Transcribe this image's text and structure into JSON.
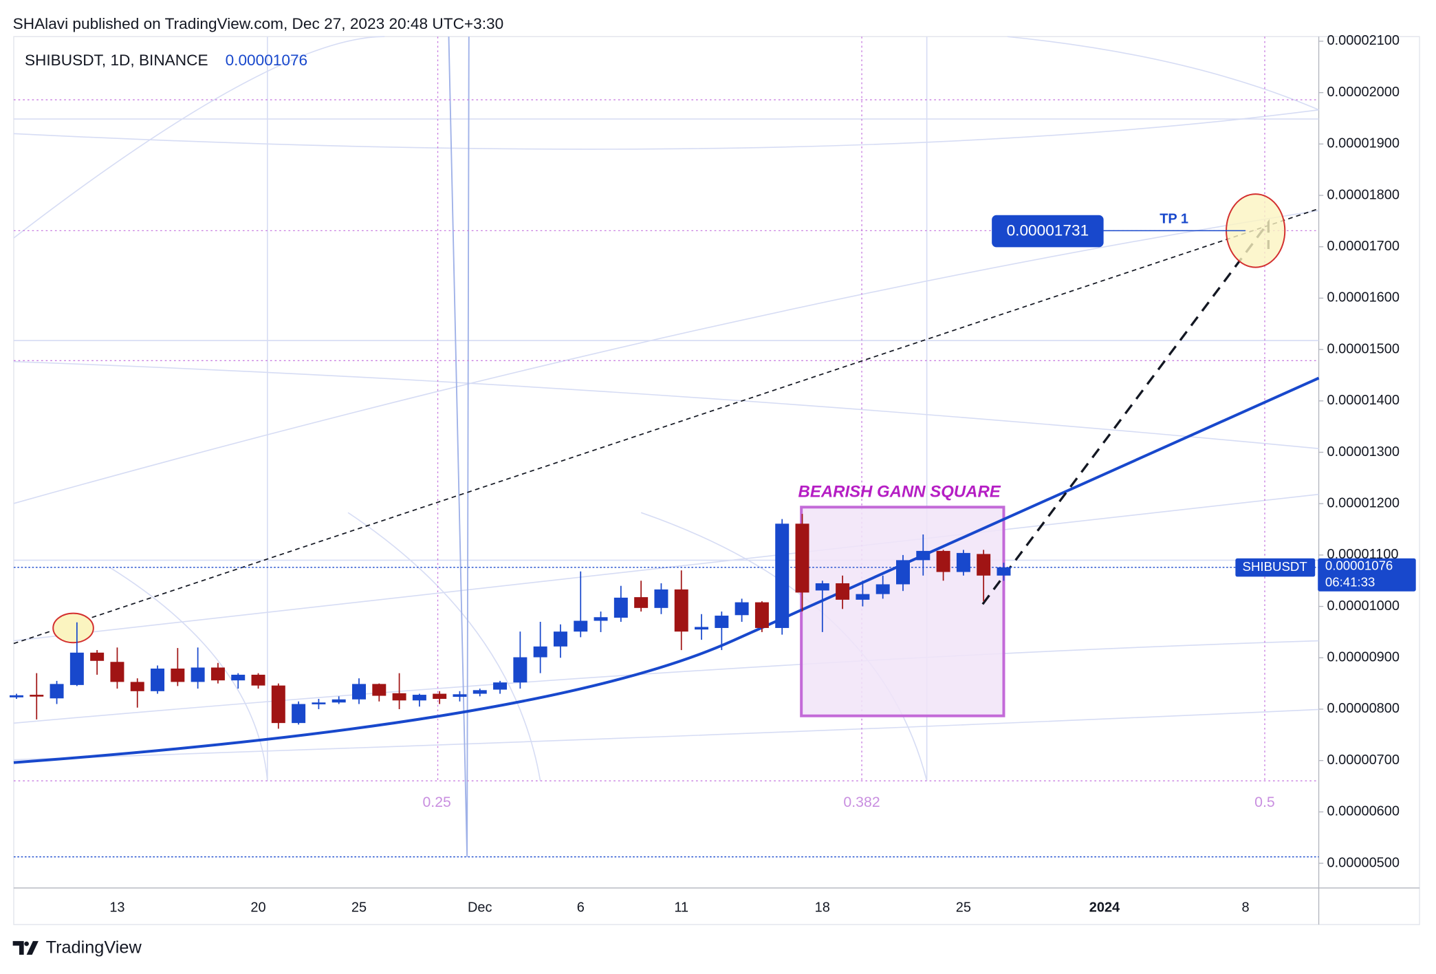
{
  "header": {
    "published": "SHAlavi published on TradingView.com, Dec 27, 2023 20:48 UTC+3:30",
    "symbol": "SHIBUSDT, 1D, BINANCE"
  },
  "footer": {
    "brand": "TradingView"
  },
  "chart_data": {
    "type": "candlestick",
    "categories": [
      null,
      null,
      null,
      null,
      null,
      "13",
      null,
      null,
      null,
      null,
      null,
      null,
      "20",
      null,
      null,
      null,
      null,
      "25",
      null,
      null,
      null,
      null,
      null,
      "Dec",
      null,
      null,
      null,
      null,
      "6",
      null,
      null,
      null,
      null,
      "11",
      null,
      null,
      null,
      null,
      null,
      null,
      "18",
      null,
      null,
      null,
      null,
      null,
      null,
      "25",
      null,
      null,
      null,
      null,
      null,
      null,
      "2024",
      null,
      null,
      null,
      null,
      null,
      null,
      "8",
      null,
      null,
      null
    ],
    "series": [
      {
        "name": "SHIBUSDT",
        "up_color": "#1848cc",
        "down_color": "#a01414",
        "open": [
          8.23e-06,
          8.28e-06,
          8.21e-06,
          8.47e-06,
          9.1e-06,
          8.92e-06,
          8.53e-06,
          8.35e-06,
          8.79e-06,
          8.53e-06,
          8.81e-06,
          8.56e-06,
          8.67e-06,
          8.46e-06,
          7.73e-06,
          8.1e-06,
          8.13e-06,
          8.19e-06,
          8.49e-06,
          8.31e-06,
          8.17e-06,
          8.3e-06,
          8.24e-06,
          8.3e-06,
          8.38e-06,
          8.52e-06,
          9.01e-06,
          9.22e-06,
          9.51e-06,
          9.72e-06,
          9.78e-06,
          1.018e-05,
          9.97e-06,
          1.033e-05,
          9.55e-06,
          9.58e-06,
          9.83e-06,
          1.008e-05,
          9.58e-06,
          1.161e-05,
          1.031e-05,
          1.045e-05,
          1.013e-05,
          1.024e-05,
          1.043e-05,
          1.09e-05,
          1.108e-05,
          1.067e-05,
          1.102e-05,
          1.06e-05,
          null,
          null,
          null,
          null,
          null,
          null,
          null,
          null,
          null,
          null,
          null,
          null,
          null,
          null,
          null
        ],
        "high": [
          8.3e-06,
          8.7e-06,
          8.55e-06,
          9.69e-06,
          9.15e-06,
          9.2e-06,
          8.6e-06,
          8.85e-06,
          9.19e-06,
          9.2e-06,
          8.9e-06,
          8.7e-06,
          8.7e-06,
          8.5e-06,
          8.15e-06,
          8.2e-06,
          8.25e-06,
          8.6e-06,
          8.5e-06,
          8.7e-06,
          8.3e-06,
          8.35e-06,
          8.35e-06,
          8.4e-06,
          8.55e-06,
          9.51e-06,
          9.7e-06,
          9.65e-06,
          1.068e-05,
          9.9e-06,
          1.04e-05,
          1.05e-05,
          1.045e-05,
          1.07e-05,
          9.85e-06,
          9.9e-06,
          1.015e-05,
          1.01e-05,
          1.17e-05,
          1.18e-05,
          1.05e-05,
          1.06e-05,
          1.05e-05,
          1.06e-05,
          1.1e-05,
          1.14e-05,
          1.11e-05,
          1.11e-05,
          1.11e-05,
          1.085e-05,
          null,
          null,
          null,
          null,
          null,
          null,
          null,
          null,
          null,
          null,
          null,
          null,
          null,
          null,
          null
        ],
        "low": [
          8.2e-06,
          7.8e-06,
          8.1e-06,
          8.45e-06,
          8.67e-06,
          8.4e-06,
          8.03e-06,
          8.3e-06,
          8.45e-06,
          8.4e-06,
          8.5e-06,
          8.4e-06,
          8.4e-06,
          7.62e-06,
          7.7e-06,
          8e-06,
          8.1e-06,
          8.1e-06,
          8.15e-06,
          8e-06,
          8.05e-06,
          8.1e-06,
          8.15e-06,
          8.25e-06,
          8.3e-06,
          8.4e-06,
          8.7e-06,
          9e-06,
          9.4e-06,
          9.5e-06,
          9.7e-06,
          9.9e-06,
          9.85e-06,
          9.15e-06,
          9.35e-06,
          9.15e-06,
          9.7e-06,
          9.5e-06,
          9.45e-06,
          9.9e-06,
          9.5e-06,
          9.95e-06,
          1e-05,
          1.015e-05,
          1.03e-05,
          1.06e-05,
          1.05e-05,
          1.06e-05,
          1.01e-05,
          1.05e-05,
          null,
          null,
          null,
          null,
          null,
          null,
          null,
          null,
          null,
          null,
          null,
          null,
          null,
          null,
          null
        ],
        "close": [
          8.27e-06,
          8.25e-06,
          8.49e-06,
          9.1e-06,
          8.94e-06,
          8.53e-06,
          8.35e-06,
          8.79e-06,
          8.53e-06,
          8.81e-06,
          8.56e-06,
          8.67e-06,
          8.46e-06,
          7.73e-06,
          8.1e-06,
          8.13e-06,
          8.19e-06,
          8.49e-06,
          8.26e-06,
          8.17e-06,
          8.28e-06,
          8.2e-06,
          8.29e-06,
          8.37e-06,
          8.52e-06,
          9.01e-06,
          9.22e-06,
          9.51e-06,
          9.72e-06,
          9.79e-06,
          1.017e-05,
          9.97e-06,
          1.033e-05,
          9.51e-06,
          9.6e-06,
          9.82e-06,
          1.008e-05,
          9.58e-06,
          1.161e-05,
          1.027e-05,
          1.045e-05,
          1.013e-05,
          1.024e-05,
          1.043e-05,
          1.09e-05,
          1.108e-05,
          1.067e-05,
          1.104e-05,
          1.06e-05,
          1.076e-05,
          null,
          null,
          null,
          null,
          null,
          null,
          null,
          null,
          null,
          null,
          null,
          null,
          null,
          null,
          null
        ]
      }
    ],
    "last_price": 1.076e-05,
    "countdown": "06:41:33",
    "ylim": [
      4.52e-06,
      2.109e-05
    ],
    "yticks": [
      {
        "value": 2.1e-05,
        "label": "0.00002100"
      },
      {
        "value": 2e-05,
        "label": "0.00002000"
      },
      {
        "value": 1.9e-05,
        "label": "0.00001900"
      },
      {
        "value": 1.8e-05,
        "label": "0.00001800"
      },
      {
        "value": 1.7e-05,
        "label": "0.00001700"
      },
      {
        "value": 1.6e-05,
        "label": "0.00001600"
      },
      {
        "value": 1.5e-05,
        "label": "0.00001500"
      },
      {
        "value": 1.4e-05,
        "label": "0.00001400"
      },
      {
        "value": 1.3e-05,
        "label": "0.00001300"
      },
      {
        "value": 1.2e-05,
        "label": "0.00001200"
      },
      {
        "value": 1.1e-05,
        "label": "0.00001100"
      },
      {
        "value": 1e-05,
        "label": "0.00001000"
      },
      {
        "value": 9e-06,
        "label": "0.00000900"
      },
      {
        "value": 8e-06,
        "label": "0.00000800"
      },
      {
        "value": 7e-06,
        "label": "0.00000700"
      },
      {
        "value": 6e-06,
        "label": "0.00000600"
      },
      {
        "value": 5e-06,
        "label": "0.00000500"
      }
    ],
    "annotations": {
      "box": "BEARISH GANN SQUARE",
      "tp_name": "TP 1",
      "tp_level": 1.731e-05,
      "fib": [
        "0.25",
        "0.382",
        "0.5"
      ]
    }
  }
}
